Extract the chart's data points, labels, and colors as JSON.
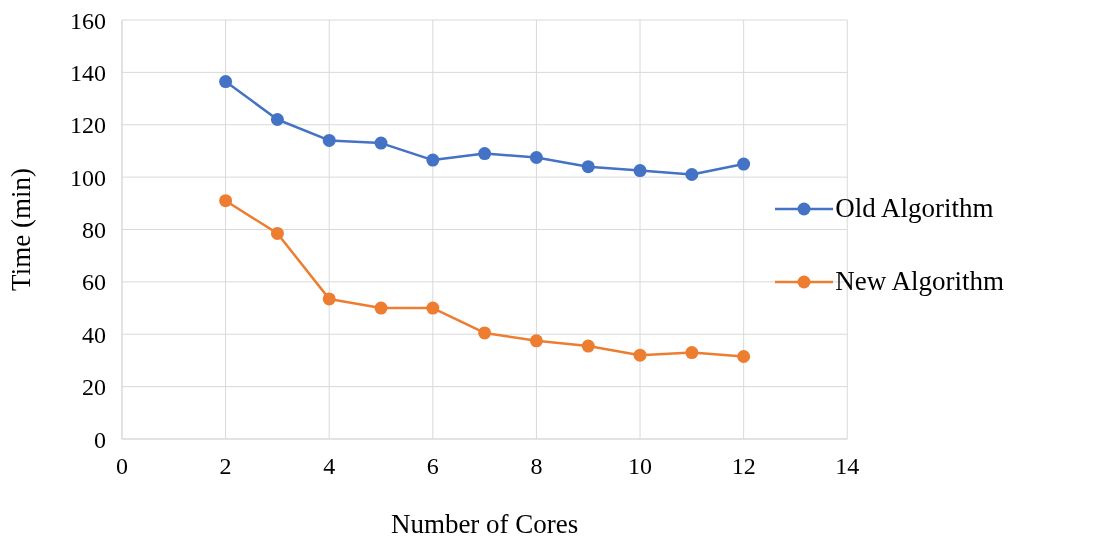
{
  "chart_data": {
    "type": "line",
    "xlabel": "Number of Cores",
    "ylabel": "Time (min)",
    "x": [
      2,
      3,
      4,
      5,
      6,
      7,
      8,
      9,
      10,
      11,
      12
    ],
    "series": [
      {
        "name": "Old Algorithm",
        "color": "#4472c4",
        "values": [
          136.5,
          122,
          114,
          113,
          106.5,
          109,
          107.5,
          104,
          102.5,
          101,
          105
        ]
      },
      {
        "name": "New Algorithm",
        "color": "#ed7d31",
        "values": [
          91,
          78.5,
          53.5,
          50,
          50,
          40.5,
          37.5,
          35.5,
          32,
          33,
          31.5
        ]
      }
    ],
    "xlim": [
      0,
      14
    ],
    "xticks": [
      0,
      2,
      4,
      6,
      8,
      10,
      12,
      14
    ],
    "ylim": [
      0,
      160
    ],
    "yticks": [
      0,
      20,
      40,
      60,
      80,
      100,
      120,
      140,
      160
    ],
    "grid": true,
    "legend": "right",
    "marker": "circle",
    "line_style": "solid"
  }
}
